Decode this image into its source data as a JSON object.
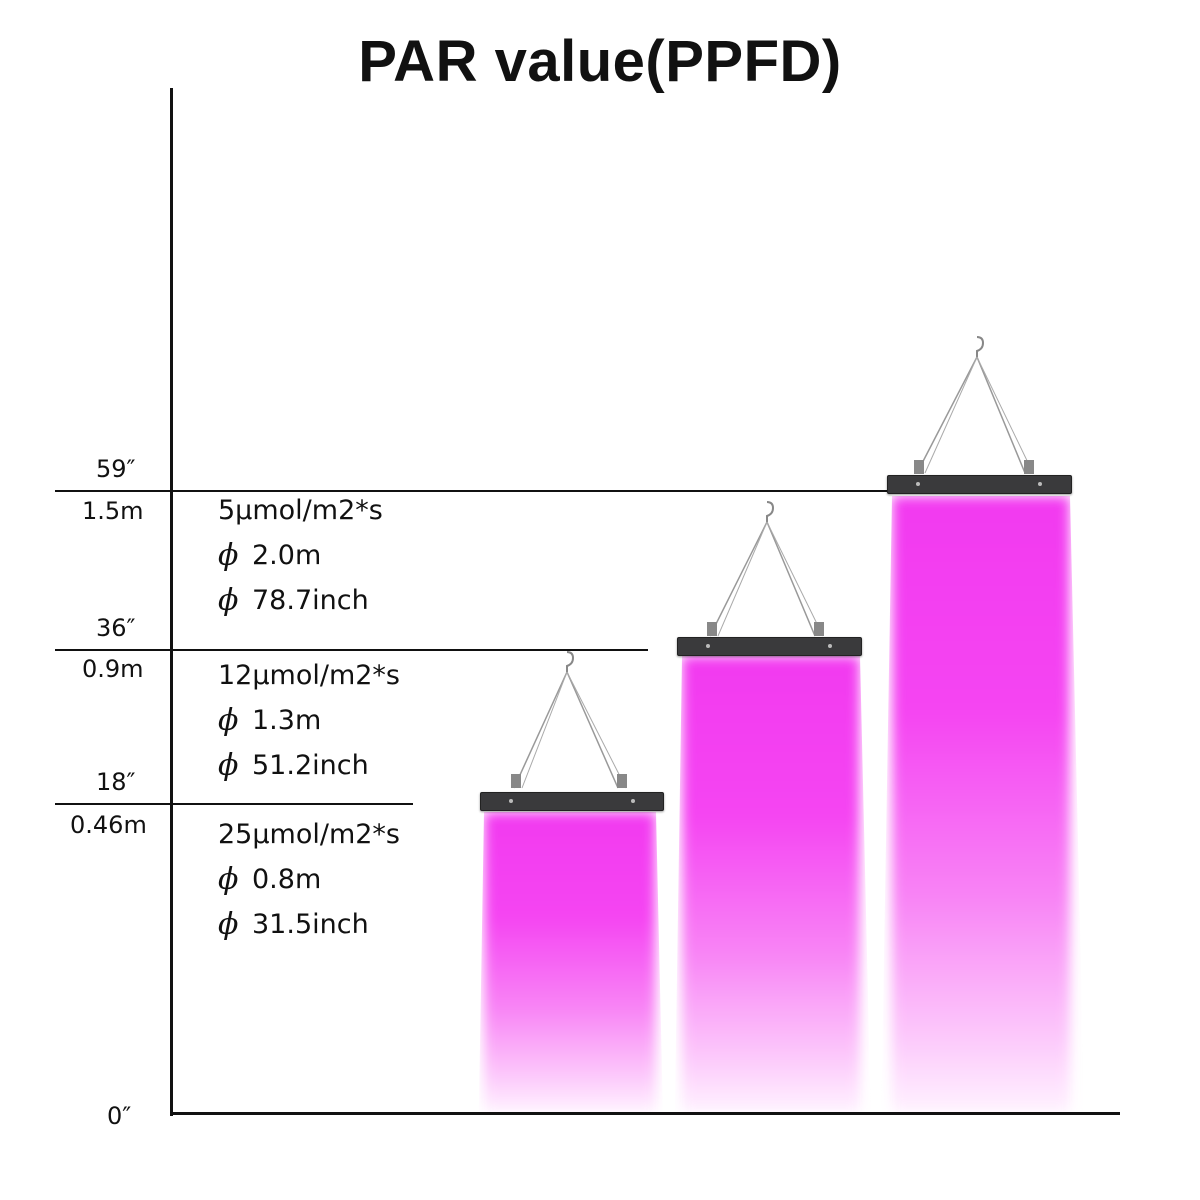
{
  "title": "PAR value(PPFD)",
  "levels": [
    {
      "inch": "59″",
      "meter": "1.5m",
      "ppfd": "5μmol/m2*s",
      "diameter_m": "2.0m",
      "diameter_in": "78.7inch"
    },
    {
      "inch": "36″",
      "meter": "0.9m",
      "ppfd": "12μmol/m2*s",
      "diameter_m": "1.3m",
      "diameter_in": "51.2inch"
    },
    {
      "inch": "18″",
      "meter": "0.46m",
      "ppfd": "25μmol/m2*s",
      "diameter_m": "0.8m",
      "diameter_in": "31.5inch"
    }
  ],
  "zero_label": "0″",
  "diameter_symbol": "ϕ",
  "colors": {
    "light": "#f23af0",
    "panel": "#3a3a3c",
    "axis": "#111111"
  }
}
